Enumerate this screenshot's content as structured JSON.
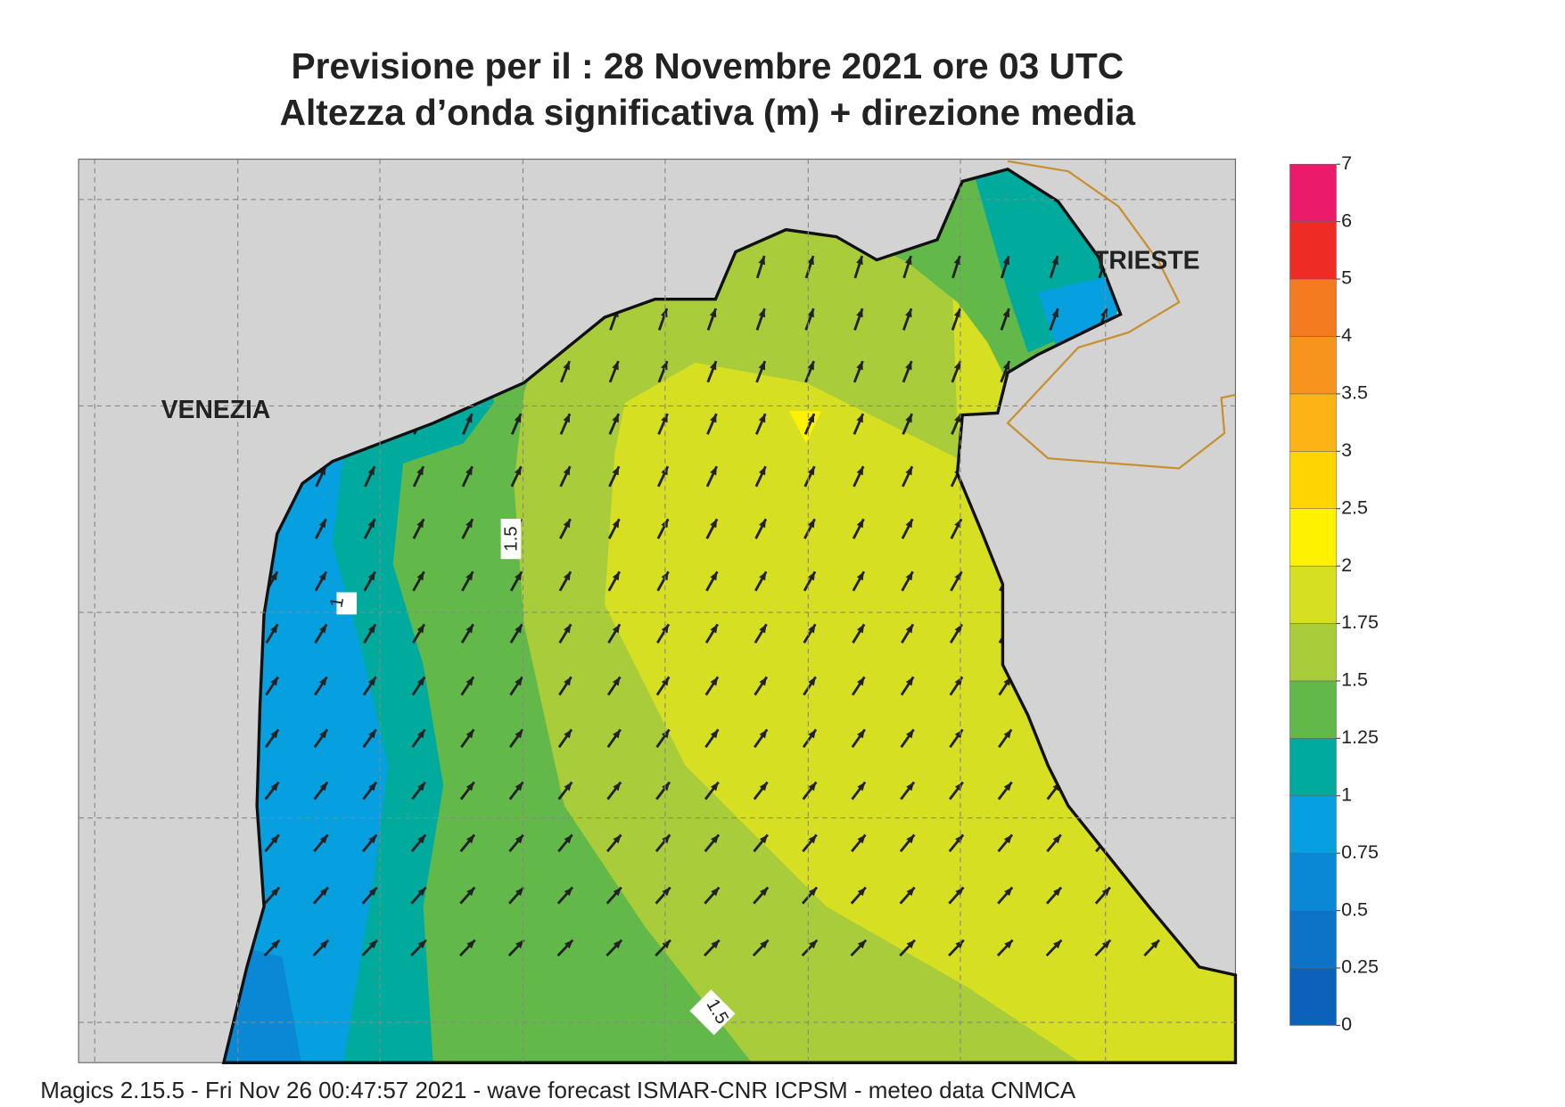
{
  "map": {
    "title": "Previsione per il  :  28 Novembre  2021   ore 03 UTC",
    "subtitle": "Altezza d’onda significativa (m) + direzione media",
    "places": [
      "VENEZIA",
      "TRIESTE"
    ],
    "contour_labels": [
      "1.5",
      "1",
      "1.5"
    ],
    "footer": "Magics 2.15.5 - Fri Nov 26 00:47:57 2021 - wave forecast  ISMAR-CNR  ICPSM - meteo data   CNMCA"
  },
  "legend": {
    "ticks": [
      0,
      0.25,
      0.5,
      0.75,
      1,
      1.25,
      1.5,
      1.75,
      2,
      2.5,
      3,
      3.5,
      4,
      5,
      6,
      7
    ],
    "colors": [
      "#0b62b8",
      "#0c73c6",
      "#0a88d6",
      "#069fe0",
      "#00ab9e",
      "#63b84a",
      "#a9cc3a",
      "#d7df22",
      "#fff200",
      "#ffd500",
      "#fcb316",
      "#f7941d",
      "#f47b20",
      "#ee2b24",
      "#ec1a6b"
    ]
  }
}
